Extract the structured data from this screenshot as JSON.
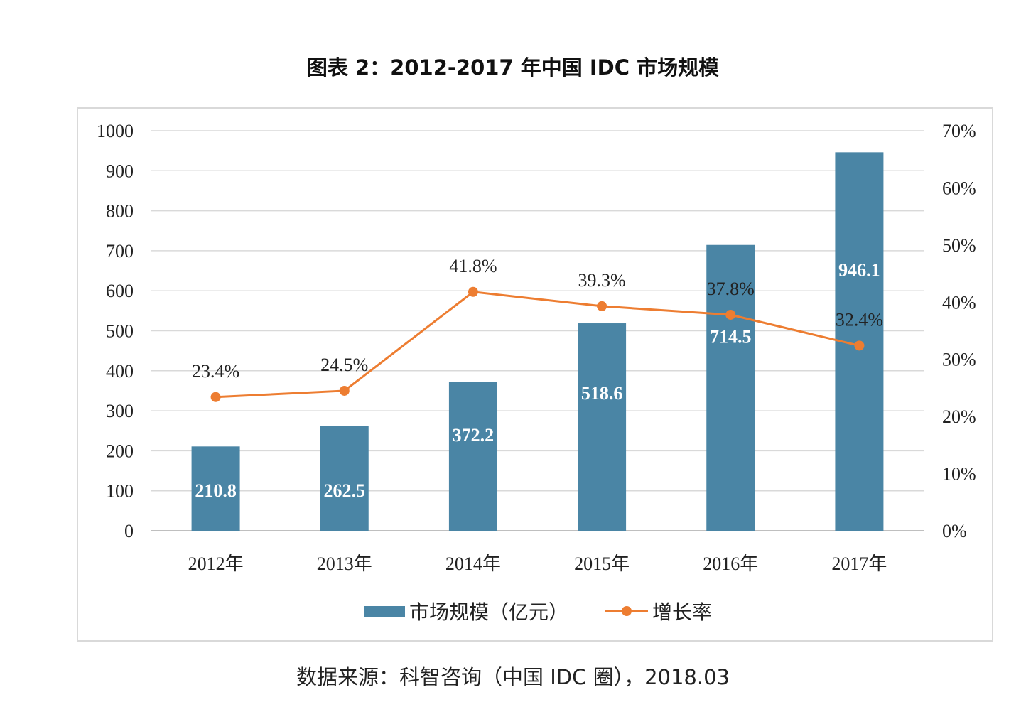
{
  "title": "图表 2：2012-2017 年中国 IDC 市场规模",
  "source": "数据来源：科智咨询（中国 IDC 圈），2018.03",
  "chart_data": {
    "type": "bar+line",
    "categories": [
      "2012年",
      "2013年",
      "2014年",
      "2015年",
      "2016年",
      "2017年"
    ],
    "series": [
      {
        "name": "市场规模（亿元）",
        "type": "bar",
        "axis": "left",
        "color": "#4a85a5",
        "values": [
          210.8,
          262.5,
          372.2,
          518.6,
          714.5,
          946.1
        ],
        "labels": [
          "210.8",
          "262.5",
          "372.2",
          "518.6",
          "714.5",
          "946.1"
        ]
      },
      {
        "name": "增长率",
        "type": "line",
        "axis": "right",
        "color": "#ed7d31",
        "values": [
          23.4,
          24.5,
          41.8,
          39.3,
          37.8,
          32.4
        ],
        "labels": [
          "23.4%",
          "24.5%",
          "41.8%",
          "39.3%",
          "37.8%",
          "32.4%"
        ]
      }
    ],
    "left_axis": {
      "range": [
        0,
        1000
      ],
      "ticks": [
        "0",
        "100",
        "200",
        "300",
        "400",
        "500",
        "600",
        "700",
        "800",
        "900",
        "1000"
      ]
    },
    "right_axis": {
      "range": [
        0,
        70
      ],
      "ticks": [
        "0%",
        "10%",
        "20%",
        "30%",
        "40%",
        "50%",
        "60%",
        "70%"
      ]
    },
    "grid": true,
    "legend": "bottom"
  }
}
